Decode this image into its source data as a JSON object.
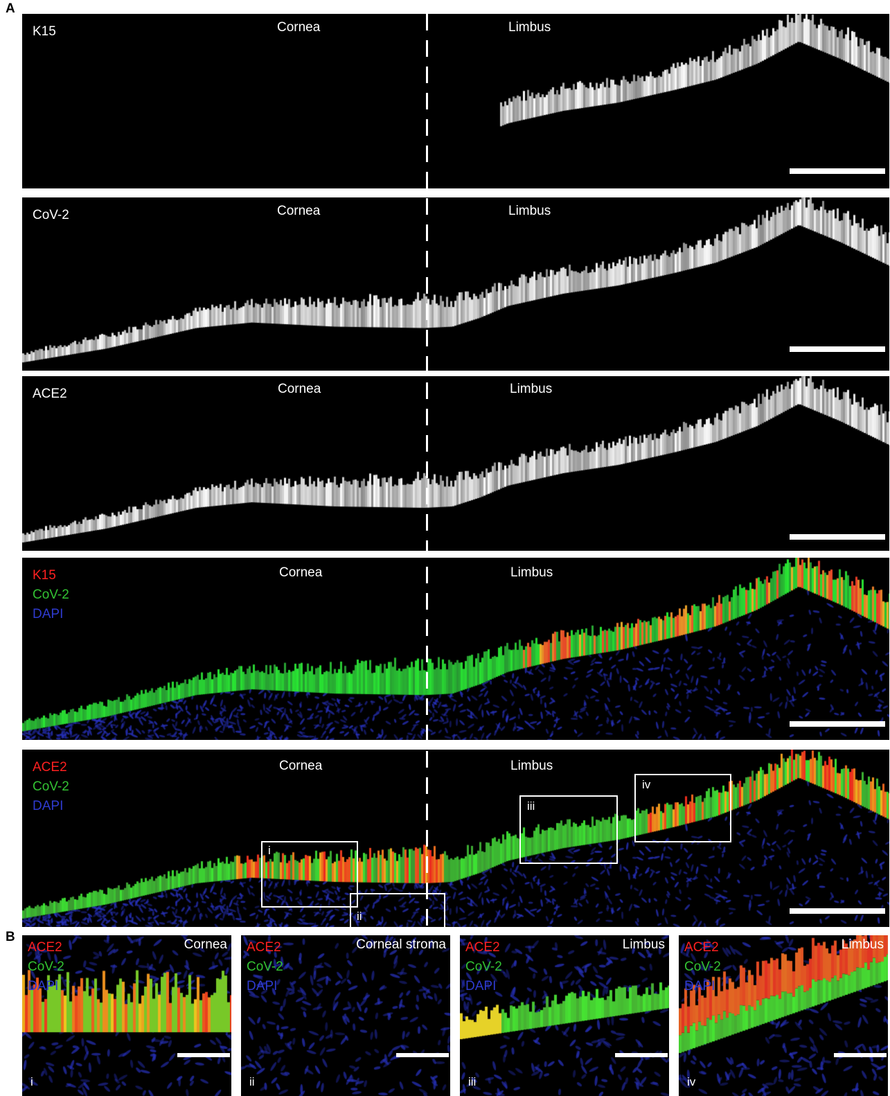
{
  "figure": {
    "panel_a_letter": "A",
    "panel_b_letter": "B"
  },
  "colors": {
    "red": "#ff2020",
    "green": "#33c233",
    "blue": "#2f3bd0",
    "white": "#ffffff",
    "background": "#000000"
  },
  "panels_a": [
    {
      "channels": [
        {
          "text": "K15",
          "color": "#ffffff"
        }
      ],
      "cornea": "Cornea",
      "limbus": "Limbus",
      "render": "k15"
    },
    {
      "channels": [
        {
          "text": "CoV-2",
          "color": "#ffffff"
        }
      ],
      "cornea": "Cornea",
      "limbus": "Limbus",
      "render": "gray"
    },
    {
      "channels": [
        {
          "text": "ACE2",
          "color": "#ffffff"
        }
      ],
      "cornea": "Cornea",
      "limbus": "Limbus",
      "render": "gray"
    },
    {
      "channels": [
        {
          "text": "K15",
          "color": "#ff2020"
        },
        {
          "text": "CoV-2",
          "color": "#33c233"
        },
        {
          "text": "DAPI",
          "color": "#2f3bd0"
        }
      ],
      "cornea": "Cornea",
      "limbus": "Limbus",
      "render": "merge1"
    },
    {
      "channels": [
        {
          "text": "ACE2",
          "color": "#ff2020"
        },
        {
          "text": "CoV-2",
          "color": "#33c233"
        },
        {
          "text": "DAPI",
          "color": "#2f3bd0"
        }
      ],
      "cornea": "Cornea",
      "limbus": "Limbus",
      "render": "merge2"
    }
  ],
  "insets": [
    {
      "label": "i"
    },
    {
      "label": "ii"
    },
    {
      "label": "iii"
    },
    {
      "label": "iv"
    }
  ],
  "panels_b": [
    {
      "title": "Cornea",
      "roman": "i",
      "channels": [
        {
          "text": "ACE2",
          "color": "#ff2020"
        },
        {
          "text": "CoV-2",
          "color": "#33c233"
        },
        {
          "text": "DAPI",
          "color": "#2f3bd0"
        }
      ]
    },
    {
      "title": "Corneal stroma",
      "roman": "ii",
      "channels": [
        {
          "text": "ACE2",
          "color": "#ff2020"
        },
        {
          "text": "CoV-2",
          "color": "#33c233"
        },
        {
          "text": "DAPI",
          "color": "#2f3bd0"
        }
      ]
    },
    {
      "title": "Limbus",
      "roman": "iii",
      "channels": [
        {
          "text": "ACE2",
          "color": "#ff2020"
        },
        {
          "text": "CoV-2",
          "color": "#33c233"
        },
        {
          "text": "DAPI",
          "color": "#2f3bd0"
        }
      ]
    },
    {
      "title": "Limbus",
      "roman": "iv",
      "channels": [
        {
          "text": "ACE2",
          "color": "#ff2020"
        },
        {
          "text": "CoV-2",
          "color": "#33c233"
        },
        {
          "text": "DAPI",
          "color": "#2f3bd0"
        }
      ]
    }
  ]
}
